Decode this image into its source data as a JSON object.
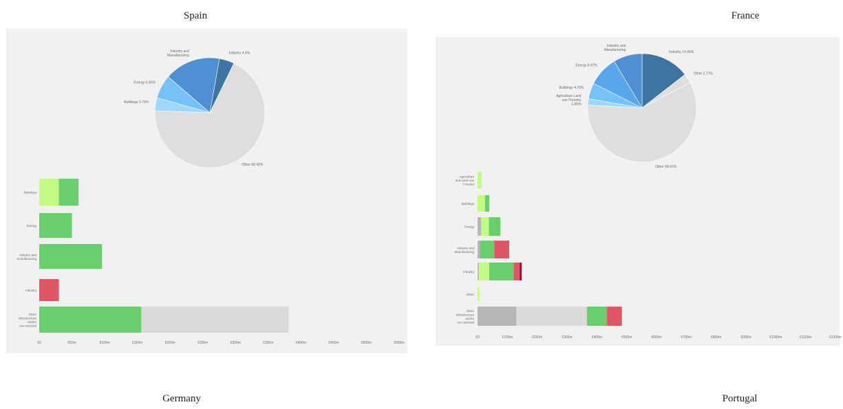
{
  "titles": {
    "spain": "Spain",
    "france": "France",
    "germany": "Germany",
    "portugal": "Portugal"
  },
  "colors": {
    "light_green": "#c2fb84",
    "green": "#6ace6d",
    "red": "#e25566",
    "dark_red": "#8e1535",
    "grey": "#b6b6b6",
    "light_grey": "#d9d9d9",
    "pie_grey": "#dedede",
    "pie_dark_blue": "#3d74a2",
    "pie_blue": "#4f8fd4",
    "pie_mid_blue": "#5aa6ec",
    "pie_light_blue": "#76c1f8",
    "pie_pale_blue": "#9fd6fb"
  },
  "chart_data": [
    {
      "country": "Spain",
      "pie": {
        "type": "pie",
        "slices": [
          {
            "label": "Industry 4.4%",
            "value": 4.4,
            "color": "pie_dark_blue"
          },
          {
            "label": "Other 68.42%",
            "value": 68.42,
            "color": "pie_grey"
          },
          {
            "label": "Buildings 3.79%",
            "value": 3.79,
            "color": "pie_pale_blue"
          },
          {
            "label": "Energy 6.95%",
            "value": 6.95,
            "color": "pie_light_blue"
          },
          {
            "label": "Industry and Manufacturing",
            "value": 16.44,
            "color": "pie_blue"
          }
        ]
      },
      "bars": {
        "type": "bar",
        "orientation": "horizontal",
        "categories": [
          "Buildings",
          "Energy",
          "Industry and manufacturing",
          "Industry",
          "Other infrastructure and/or non-sectoral"
        ],
        "series": [
          {
            "values": [
              30,
              50,
              96,
              0,
              156
            ],
            "color": "green"
          },
          {
            "values": [
              0,
              0,
              0,
              0,
              225
            ],
            "color": "light_grey"
          },
          {
            "values": [
              0,
              0,
              0,
              30,
              0
            ],
            "color": "red"
          }
        ],
        "light_green_values": [
          30,
          0,
          0,
          0,
          0
        ],
        "xticks": [
          "€0",
          "€50m",
          "€100m",
          "€150m",
          "€200m",
          "€250m",
          "€300m",
          "€350m",
          "€400m",
          "€450m",
          "€500m",
          "€550m"
        ],
        "xlim": [
          0,
          550
        ]
      }
    },
    {
      "country": "France",
      "pie": {
        "type": "pie",
        "slices": [
          {
            "label": "Industry 14.46%",
            "value": 14.46,
            "color": "pie_dark_blue"
          },
          {
            "label": "Other 2.77%",
            "value": 2.77,
            "color": "pie_grey"
          },
          {
            "label": "Other 58.61%",
            "value": 58.61,
            "color": "pie_grey"
          },
          {
            "label": "Agriculture Land use Forestry 1.86%",
            "value": 1.86,
            "color": "pie_pale_blue"
          },
          {
            "label": "Buildings 4.75%",
            "value": 4.75,
            "color": "pie_light_blue"
          },
          {
            "label": "Energy 8.97%",
            "value": 8.97,
            "color": "pie_mid_blue"
          },
          {
            "label": "Industry and Manufacturing",
            "value": 8.58,
            "color": "pie_blue"
          }
        ]
      },
      "bars": {
        "type": "bar",
        "orientation": "horizontal",
        "categories": [
          "Agriculture and Land use Forestry",
          "Buildings",
          "Energy",
          "Industry and Manufacturing",
          "Industry",
          "Other",
          "Other infrastructure and/or non-sectoral"
        ],
        "segments": [
          [
            {
              "value": 14,
              "color": "light_green"
            }
          ],
          [
            {
              "value": 25,
              "color": "light_green"
            },
            {
              "value": 14,
              "color": "green"
            }
          ],
          [
            {
              "value": 12,
              "color": "grey"
            },
            {
              "value": 26,
              "color": "light_green"
            },
            {
              "value": 38,
              "color": "green"
            }
          ],
          [
            {
              "value": 8,
              "color": "grey"
            },
            {
              "value": 48,
              "color": "green"
            },
            {
              "value": 50,
              "color": "red"
            }
          ],
          [
            {
              "value": 4,
              "color": "grey"
            },
            {
              "value": 35,
              "color": "light_green"
            },
            {
              "value": 82,
              "color": "green"
            },
            {
              "value": 20,
              "color": "red"
            },
            {
              "value": 7,
              "color": "dark_red"
            }
          ],
          [
            {
              "value": 6,
              "color": "light_green"
            }
          ],
          [
            {
              "value": 130,
              "color": "grey"
            },
            {
              "value": 237,
              "color": "light_grey"
            },
            {
              "value": 67,
              "color": "green"
            },
            {
              "value": 50,
              "color": "red"
            }
          ]
        ],
        "xticks": [
          "€0",
          "€100m",
          "€200m",
          "€300m",
          "€400m",
          "€500m",
          "€600m",
          "€700m",
          "€800m",
          "€900m",
          "€1000m",
          "€1100m",
          "€1200m"
        ],
        "xlim": [
          0,
          1200
        ]
      }
    }
  ]
}
